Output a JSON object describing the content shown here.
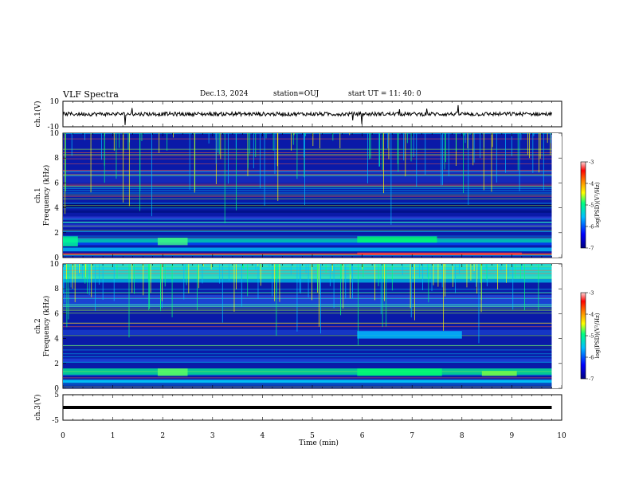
{
  "header": {
    "title": "VLF Spectra",
    "date": "Dec.13, 2024",
    "station": "station=OUJ",
    "start_ut": "start  UT =   11: 40: 0"
  },
  "chart_data": [
    {
      "type": "line",
      "name": "ch1-waveform",
      "ylabel": "ch.1(V)",
      "ylim": [
        -10,
        10
      ],
      "yticks": [
        "10",
        "-10"
      ],
      "xlim": [
        0,
        10
      ],
      "baseline": 0
    },
    {
      "type": "heatmap",
      "name": "ch1-spectrogram",
      "ylabel": "ch.1\nFrequency  (kHz)",
      "ylim": [
        0,
        10
      ],
      "yticks": [
        "0",
        "2",
        "4",
        "6",
        "8",
        "10"
      ],
      "xlim": [
        0,
        10
      ],
      "data_end_min": 9.8,
      "colorbar": {
        "label": "log(PSD)(V²/Hz)",
        "range": [
          -7,
          -3
        ],
        "ticks": [
          "-3",
          "-4",
          "-5",
          "-6",
          "-7"
        ]
      }
    },
    {
      "type": "heatmap",
      "name": "ch2-spectrogram",
      "ylabel": "ch.2\nFrequency  (kHz)",
      "ylim": [
        0,
        10
      ],
      "yticks": [
        "0",
        "2",
        "4",
        "6",
        "8",
        "10"
      ],
      "xlim": [
        0,
        10
      ],
      "data_end_min": 9.8,
      "colorbar": {
        "label": "log(PSD)(V²/Hz)",
        "range": [
          -7,
          -3
        ],
        "ticks": [
          "-3",
          "-4",
          "-5",
          "-6",
          "-7"
        ]
      }
    },
    {
      "type": "line",
      "name": "ch3-waveform",
      "ylabel": "ch.3(V)",
      "ylim": [
        -5,
        5
      ],
      "yticks": [
        "5",
        "-5"
      ],
      "xlim": [
        0,
        10
      ],
      "baseline": 0
    }
  ],
  "xaxis": {
    "label": "Time  (min)",
    "ticks": [
      "0",
      "1",
      "2",
      "3",
      "4",
      "5",
      "6",
      "7",
      "8",
      "9",
      "10"
    ]
  },
  "colors": {
    "background": "#ffffff",
    "trace": "#000000",
    "colormap": [
      "#00008b",
      "#0000ff",
      "#00bfff",
      "#00ff7f",
      "#ffff00",
      "#ff7f00",
      "#ff0000",
      "#ffd0d0"
    ]
  }
}
